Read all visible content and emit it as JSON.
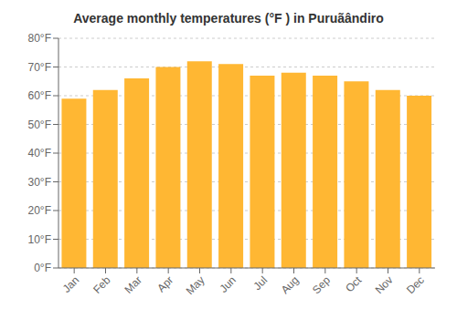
{
  "chart_data": {
    "type": "bar",
    "title": "Average monthly temperatures (°F ) in Puruãândiro",
    "categories": [
      "Jan",
      "Feb",
      "Mar",
      "Apr",
      "May",
      "Jun",
      "Jul",
      "Aug",
      "Sep",
      "Oct",
      "Nov",
      "Dec"
    ],
    "values": [
      59,
      62,
      66,
      70,
      72,
      71,
      67,
      68,
      67,
      65,
      62,
      60
    ],
    "color": "#FFB733",
    "ylim": [
      0,
      80
    ],
    "yticks": [
      {
        "value": 0,
        "label": "0°F"
      },
      {
        "value": 10,
        "label": "10°F"
      },
      {
        "value": 20,
        "label": "20°F"
      },
      {
        "value": 30,
        "label": "30°F"
      },
      {
        "value": 40,
        "label": "40°F"
      },
      {
        "value": 50,
        "label": "50°F"
      },
      {
        "value": 60,
        "label": "60°F"
      },
      {
        "value": 70,
        "label": "70°F"
      },
      {
        "value": 80,
        "label": "80°F"
      }
    ],
    "grid": true
  }
}
